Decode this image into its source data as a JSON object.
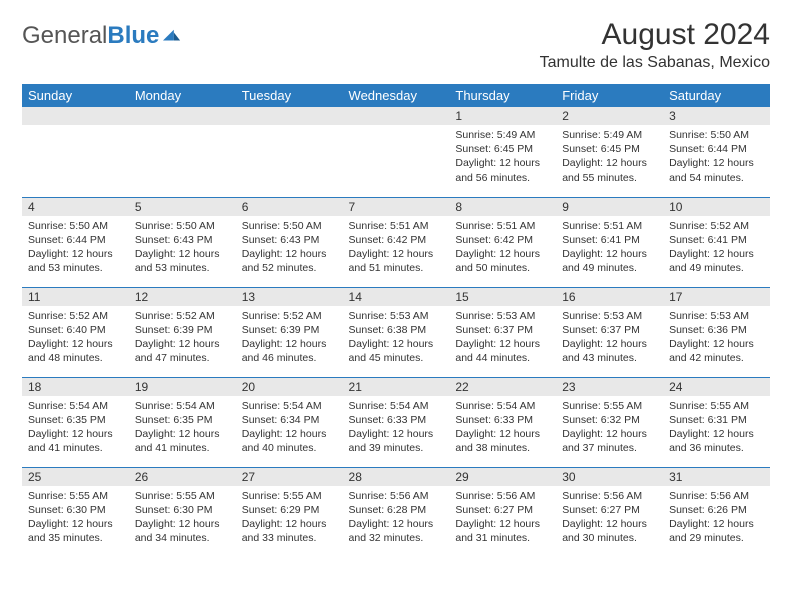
{
  "logo": {
    "text1": "General",
    "text2": "Blue"
  },
  "title": "August 2024",
  "location": "Tamulte de las Sabanas, Mexico",
  "colors": {
    "header_bg": "#2b7bbf",
    "header_text": "#ffffff",
    "daynum_bg": "#e8e8e8",
    "divider": "#2b7bbf",
    "body_text": "#333333",
    "logo_gray": "#555555",
    "background": "#ffffff"
  },
  "typography": {
    "title_fontsize": 30,
    "location_fontsize": 16,
    "weekday_fontsize": 13,
    "daynum_fontsize": 12,
    "cell_fontsize": 10.5,
    "font_family": "Arial"
  },
  "weekdays": [
    "Sunday",
    "Monday",
    "Tuesday",
    "Wednesday",
    "Thursday",
    "Friday",
    "Saturday"
  ],
  "weeks": [
    [
      {
        "n": "",
        "sr": "",
        "ss": "",
        "dl": ""
      },
      {
        "n": "",
        "sr": "",
        "ss": "",
        "dl": ""
      },
      {
        "n": "",
        "sr": "",
        "ss": "",
        "dl": ""
      },
      {
        "n": "",
        "sr": "",
        "ss": "",
        "dl": ""
      },
      {
        "n": "1",
        "sr": "Sunrise: 5:49 AM",
        "ss": "Sunset: 6:45 PM",
        "dl": "Daylight: 12 hours and 56 minutes."
      },
      {
        "n": "2",
        "sr": "Sunrise: 5:49 AM",
        "ss": "Sunset: 6:45 PM",
        "dl": "Daylight: 12 hours and 55 minutes."
      },
      {
        "n": "3",
        "sr": "Sunrise: 5:50 AM",
        "ss": "Sunset: 6:44 PM",
        "dl": "Daylight: 12 hours and 54 minutes."
      }
    ],
    [
      {
        "n": "4",
        "sr": "Sunrise: 5:50 AM",
        "ss": "Sunset: 6:44 PM",
        "dl": "Daylight: 12 hours and 53 minutes."
      },
      {
        "n": "5",
        "sr": "Sunrise: 5:50 AM",
        "ss": "Sunset: 6:43 PM",
        "dl": "Daylight: 12 hours and 53 minutes."
      },
      {
        "n": "6",
        "sr": "Sunrise: 5:50 AM",
        "ss": "Sunset: 6:43 PM",
        "dl": "Daylight: 12 hours and 52 minutes."
      },
      {
        "n": "7",
        "sr": "Sunrise: 5:51 AM",
        "ss": "Sunset: 6:42 PM",
        "dl": "Daylight: 12 hours and 51 minutes."
      },
      {
        "n": "8",
        "sr": "Sunrise: 5:51 AM",
        "ss": "Sunset: 6:42 PM",
        "dl": "Daylight: 12 hours and 50 minutes."
      },
      {
        "n": "9",
        "sr": "Sunrise: 5:51 AM",
        "ss": "Sunset: 6:41 PM",
        "dl": "Daylight: 12 hours and 49 minutes."
      },
      {
        "n": "10",
        "sr": "Sunrise: 5:52 AM",
        "ss": "Sunset: 6:41 PM",
        "dl": "Daylight: 12 hours and 49 minutes."
      }
    ],
    [
      {
        "n": "11",
        "sr": "Sunrise: 5:52 AM",
        "ss": "Sunset: 6:40 PM",
        "dl": "Daylight: 12 hours and 48 minutes."
      },
      {
        "n": "12",
        "sr": "Sunrise: 5:52 AM",
        "ss": "Sunset: 6:39 PM",
        "dl": "Daylight: 12 hours and 47 minutes."
      },
      {
        "n": "13",
        "sr": "Sunrise: 5:52 AM",
        "ss": "Sunset: 6:39 PM",
        "dl": "Daylight: 12 hours and 46 minutes."
      },
      {
        "n": "14",
        "sr": "Sunrise: 5:53 AM",
        "ss": "Sunset: 6:38 PM",
        "dl": "Daylight: 12 hours and 45 minutes."
      },
      {
        "n": "15",
        "sr": "Sunrise: 5:53 AM",
        "ss": "Sunset: 6:37 PM",
        "dl": "Daylight: 12 hours and 44 minutes."
      },
      {
        "n": "16",
        "sr": "Sunrise: 5:53 AM",
        "ss": "Sunset: 6:37 PM",
        "dl": "Daylight: 12 hours and 43 minutes."
      },
      {
        "n": "17",
        "sr": "Sunrise: 5:53 AM",
        "ss": "Sunset: 6:36 PM",
        "dl": "Daylight: 12 hours and 42 minutes."
      }
    ],
    [
      {
        "n": "18",
        "sr": "Sunrise: 5:54 AM",
        "ss": "Sunset: 6:35 PM",
        "dl": "Daylight: 12 hours and 41 minutes."
      },
      {
        "n": "19",
        "sr": "Sunrise: 5:54 AM",
        "ss": "Sunset: 6:35 PM",
        "dl": "Daylight: 12 hours and 41 minutes."
      },
      {
        "n": "20",
        "sr": "Sunrise: 5:54 AM",
        "ss": "Sunset: 6:34 PM",
        "dl": "Daylight: 12 hours and 40 minutes."
      },
      {
        "n": "21",
        "sr": "Sunrise: 5:54 AM",
        "ss": "Sunset: 6:33 PM",
        "dl": "Daylight: 12 hours and 39 minutes."
      },
      {
        "n": "22",
        "sr": "Sunrise: 5:54 AM",
        "ss": "Sunset: 6:33 PM",
        "dl": "Daylight: 12 hours and 38 minutes."
      },
      {
        "n": "23",
        "sr": "Sunrise: 5:55 AM",
        "ss": "Sunset: 6:32 PM",
        "dl": "Daylight: 12 hours and 37 minutes."
      },
      {
        "n": "24",
        "sr": "Sunrise: 5:55 AM",
        "ss": "Sunset: 6:31 PM",
        "dl": "Daylight: 12 hours and 36 minutes."
      }
    ],
    [
      {
        "n": "25",
        "sr": "Sunrise: 5:55 AM",
        "ss": "Sunset: 6:30 PM",
        "dl": "Daylight: 12 hours and 35 minutes."
      },
      {
        "n": "26",
        "sr": "Sunrise: 5:55 AM",
        "ss": "Sunset: 6:30 PM",
        "dl": "Daylight: 12 hours and 34 minutes."
      },
      {
        "n": "27",
        "sr": "Sunrise: 5:55 AM",
        "ss": "Sunset: 6:29 PM",
        "dl": "Daylight: 12 hours and 33 minutes."
      },
      {
        "n": "28",
        "sr": "Sunrise: 5:56 AM",
        "ss": "Sunset: 6:28 PM",
        "dl": "Daylight: 12 hours and 32 minutes."
      },
      {
        "n": "29",
        "sr": "Sunrise: 5:56 AM",
        "ss": "Sunset: 6:27 PM",
        "dl": "Daylight: 12 hours and 31 minutes."
      },
      {
        "n": "30",
        "sr": "Sunrise: 5:56 AM",
        "ss": "Sunset: 6:27 PM",
        "dl": "Daylight: 12 hours and 30 minutes."
      },
      {
        "n": "31",
        "sr": "Sunrise: 5:56 AM",
        "ss": "Sunset: 6:26 PM",
        "dl": "Daylight: 12 hours and 29 minutes."
      }
    ]
  ]
}
